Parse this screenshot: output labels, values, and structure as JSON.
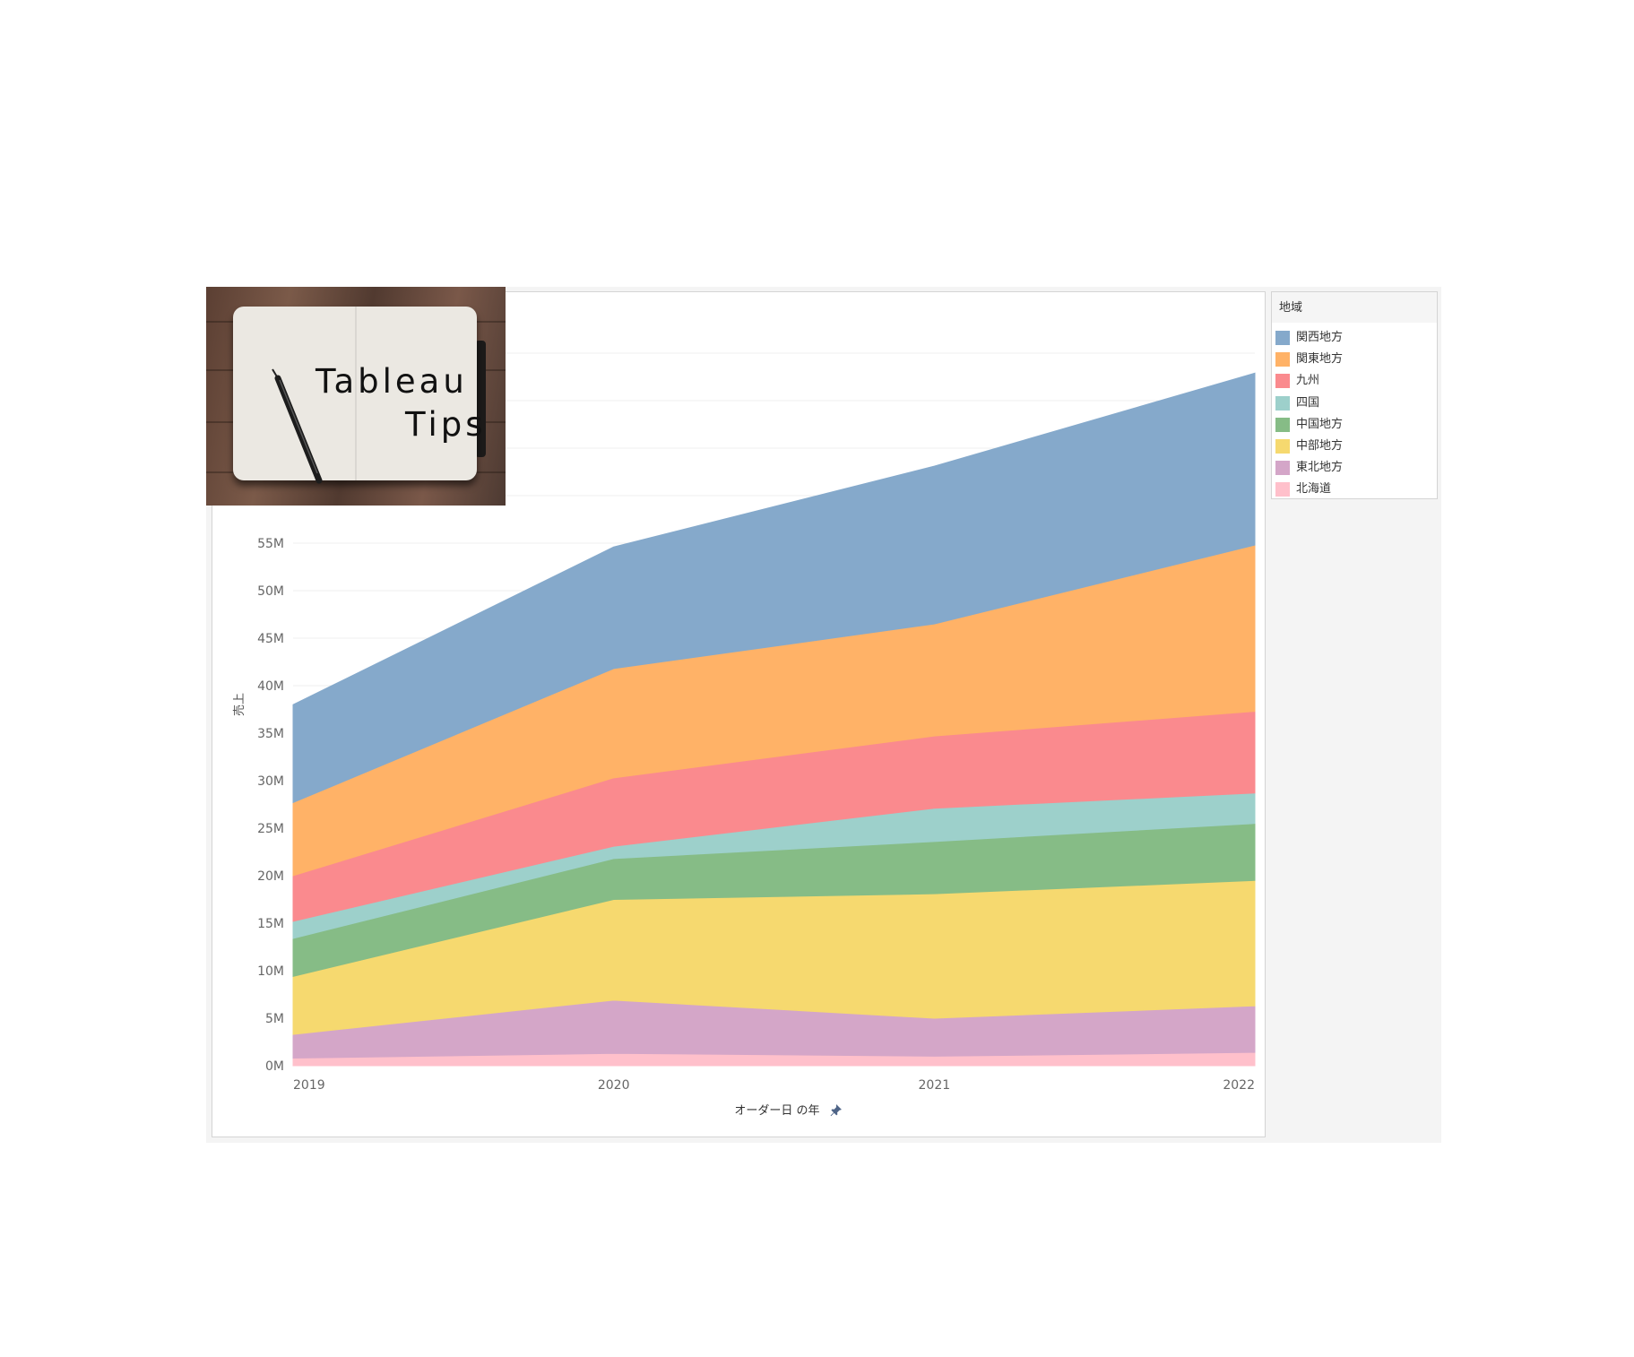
{
  "chart_data": {
    "type": "area",
    "stacked": true,
    "x": [
      "2019",
      "2020",
      "2021",
      "2022"
    ],
    "xlabel": "オーダー日 の年",
    "ylabel": "売上",
    "ylim": [
      0,
      80000000
    ],
    "yticks": [
      0,
      5000000,
      10000000,
      15000000,
      20000000,
      25000000,
      30000000,
      35000000,
      40000000,
      45000000,
      50000000,
      55000000
    ],
    "ytick_labels": [
      "0M",
      "5M",
      "10M",
      "15M",
      "20M",
      "25M",
      "30M",
      "35M",
      "40M",
      "45M",
      "50M",
      "55M"
    ],
    "grid": true,
    "legend_title": "地域",
    "legend_position": "right",
    "series": [
      {
        "name": "北海道",
        "color": "#ffc0cb",
        "values": [
          0.8,
          1.3,
          1.0,
          1.4
        ]
      },
      {
        "name": "東北地方",
        "color": "#d4a6c8",
        "values": [
          2.5,
          5.6,
          4.0,
          4.9
        ]
      },
      {
        "name": "中部地方",
        "color": "#f6d96f",
        "values": [
          6.1,
          10.6,
          13.1,
          13.2
        ]
      },
      {
        "name": "中国地方",
        "color": "#86bc86",
        "values": [
          4.0,
          4.3,
          5.5,
          6.0
        ]
      },
      {
        "name": "四国",
        "color": "#9dd0cb",
        "values": [
          1.8,
          1.3,
          3.5,
          3.2
        ]
      },
      {
        "name": "九州",
        "color": "#fa8a8e",
        "values": [
          4.8,
          7.2,
          7.6,
          8.6
        ]
      },
      {
        "name": "関東地方",
        "color": "#ffb267",
        "values": [
          7.7,
          11.5,
          11.8,
          17.5
        ]
      },
      {
        "name": "関西地方",
        "color": "#85a9cb",
        "values": [
          10.3,
          12.8,
          16.6,
          18.1
        ]
      }
    ],
    "value_unit": "M"
  },
  "legend": {
    "title": "地域",
    "items": [
      {
        "label": "関西地方",
        "color": "#85a9cb"
      },
      {
        "label": "関東地方",
        "color": "#ffb267"
      },
      {
        "label": "九州",
        "color": "#fa8a8e"
      },
      {
        "label": "四国",
        "color": "#9dd0cb"
      },
      {
        "label": "中国地方",
        "color": "#86bc86"
      },
      {
        "label": "中部地方",
        "color": "#f6d96f"
      },
      {
        "label": "東北地方",
        "color": "#d4a6c8"
      },
      {
        "label": "北海道",
        "color": "#ffc0cb"
      }
    ]
  },
  "logo": {
    "line1": "Tableau",
    "line2": "Tips"
  },
  "icons": {
    "x_axis_pin": "pin-icon"
  }
}
